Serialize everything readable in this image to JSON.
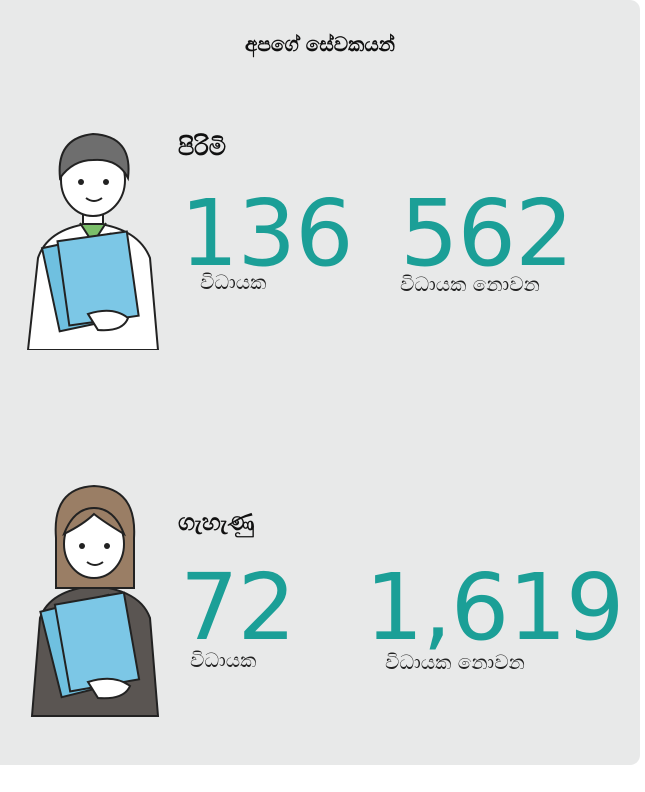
{
  "title": "අපගේ සේවකයන්",
  "groups": [
    {
      "label": "පිරිමි",
      "stats": [
        {
          "value": "136",
          "label": "විධායක"
        },
        {
          "value": "562",
          "label": "විධායක නොවන"
        }
      ]
    },
    {
      "label": "ගැහැණු",
      "stats": [
        {
          "value": "72",
          "label": "විධායක"
        },
        {
          "value": "1,619",
          "label": "විධායක නොවන"
        }
      ]
    }
  ]
}
